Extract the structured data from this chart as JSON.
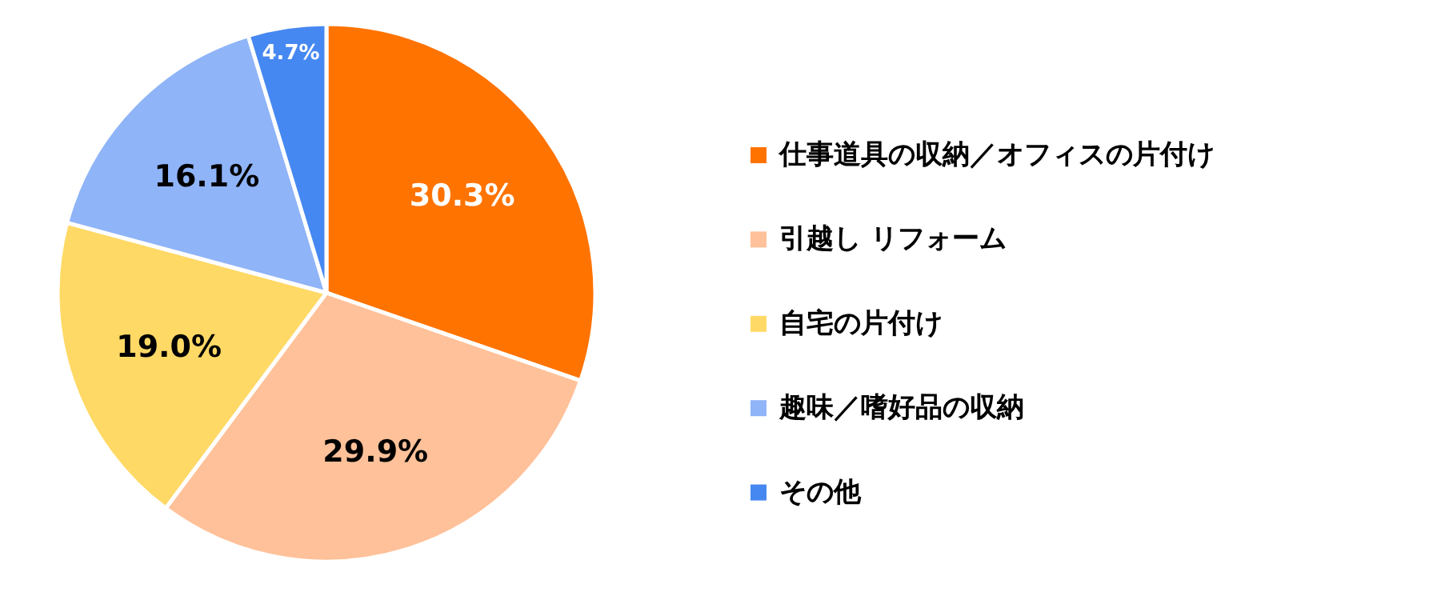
{
  "chart_data": {
    "type": "pie",
    "categories": [
      "仕事道具の収納／オフィスの片付け",
      "引越し リフォーム",
      "自宅の片付け",
      "趣味／嗜好品の収納",
      "その他"
    ],
    "values": [
      30.3,
      29.9,
      19.0,
      16.1,
      4.7
    ],
    "colors": [
      "#ff7300",
      "#ffc199",
      "#ffd966",
      "#8fb4f8",
      "#4688f1"
    ],
    "value_labels": [
      "30.3%",
      "29.9%",
      "19.0%",
      "16.1%",
      "4.7%"
    ],
    "legend": "right"
  }
}
